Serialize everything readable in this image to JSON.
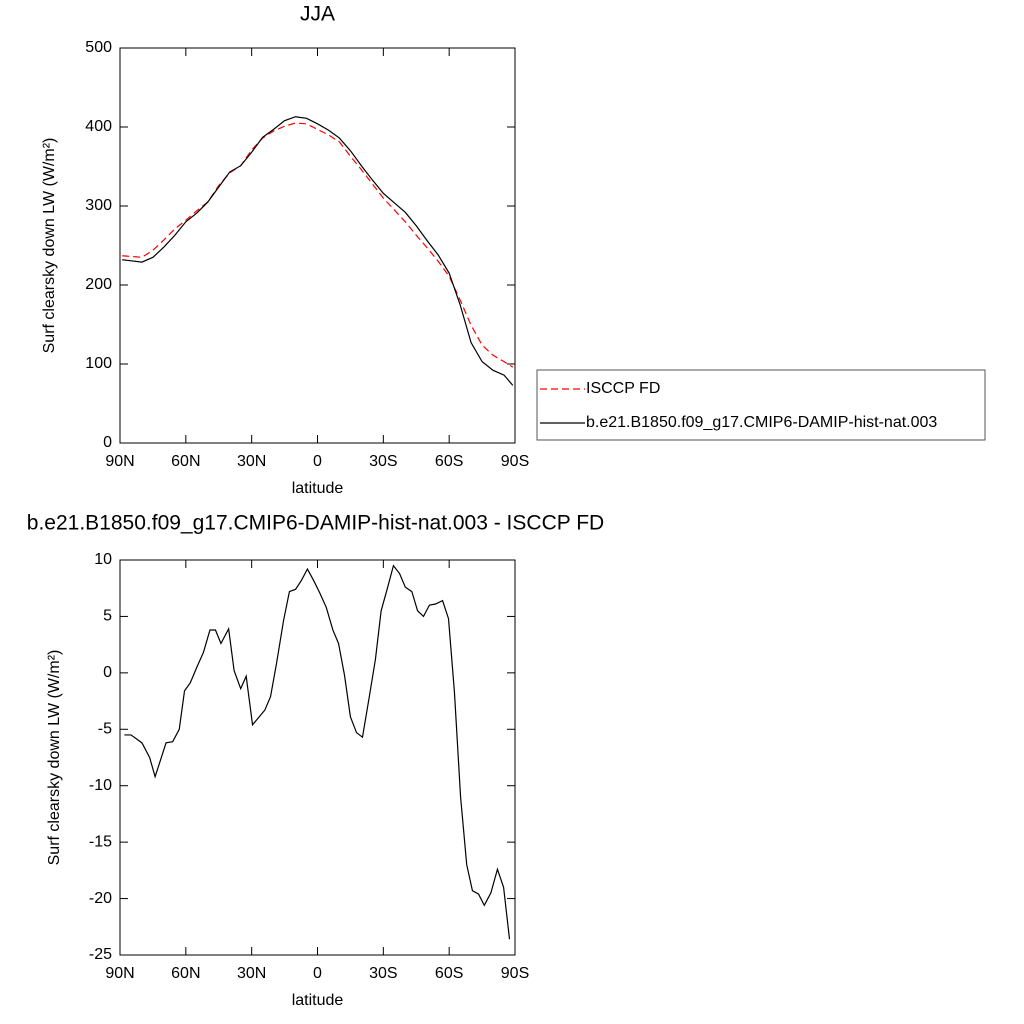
{
  "chart_data": [
    {
      "type": "line",
      "title": "JJA",
      "xlabel": "latitude",
      "ylabel": "Surf clearsky down LW (W/m²)",
      "xlim": [
        90,
        -90
      ],
      "xticks": [
        {
          "value": 90,
          "label": "90N"
        },
        {
          "value": 60,
          "label": "60N"
        },
        {
          "value": 30,
          "label": "30N"
        },
        0,
        {
          "value": -30,
          "label": "30S"
        },
        {
          "value": -60,
          "label": "60S"
        },
        {
          "value": -90,
          "label": "90S"
        }
      ],
      "ylim": [
        0,
        500
      ],
      "yticks": [
        0,
        100,
        200,
        300,
        400,
        500
      ],
      "legend": "outside-right",
      "x": [
        89,
        80,
        75,
        70,
        65,
        60,
        55,
        50,
        45,
        40,
        35,
        30,
        25,
        20,
        15,
        10,
        5,
        0,
        -5,
        -10,
        -15,
        -20,
        -25,
        -30,
        -35,
        -40,
        -45,
        -50,
        -55,
        -60,
        -65,
        -70,
        -75,
        -80,
        -85,
        -89
      ],
      "series": [
        {
          "name": "ISCCP FD",
          "color": "#ff0000",
          "dash": true,
          "values": [
            237,
            235,
            244,
            257,
            271,
            282,
            294,
            305,
            326,
            342,
            351,
            371,
            386,
            395,
            401,
            405,
            404,
            397,
            390,
            381,
            363,
            346,
            328,
            310,
            295,
            280,
            263,
            247,
            230,
            211,
            181,
            149,
            124,
            111,
            103,
            96
          ]
        },
        {
          "name": "b.e21.B1850.f09_g17.CMIP6-DAMIP-hist-nat.003",
          "color": "#000000",
          "dash": false,
          "values": [
            232,
            229,
            235,
            248,
            263,
            280,
            291,
            305,
            324,
            343,
            351,
            368,
            387,
            397,
            408,
            413,
            411,
            404,
            396,
            386,
            370,
            351,
            333,
            316,
            304,
            292,
            275,
            256,
            238,
            215,
            175,
            127,
            103,
            92,
            86,
            73
          ]
        }
      ]
    },
    {
      "type": "line",
      "title": "b.e21.B1850.f09_g17.CMIP6-DAMIP-hist-nat.003 - ISCCP FD",
      "xlabel": "latitude",
      "ylabel": "Surf clearsky down LW (W/m²)",
      "xlim": [
        90,
        -90
      ],
      "xticks": [
        {
          "value": 90,
          "label": "90N"
        },
        {
          "value": 60,
          "label": "60N"
        },
        {
          "value": 30,
          "label": "30N"
        },
        0,
        {
          "value": -30,
          "label": "30S"
        },
        {
          "value": -60,
          "label": "60S"
        },
        {
          "value": -90,
          "label": "90S"
        }
      ],
      "ylim": [
        -25,
        10
      ],
      "yticks": [
        -25,
        -20,
        -15,
        -10,
        -5,
        0,
        5,
        10
      ],
      "x": [
        88,
        85,
        80,
        76.5,
        74,
        69,
        66,
        63,
        60.6,
        58,
        55,
        52,
        49,
        46.5,
        44,
        40.5,
        38,
        35,
        32.5,
        29.6,
        27,
        24,
        21.4,
        18.7,
        15.5,
        12.8,
        10,
        7.3,
        4.6,
        1.8,
        -1,
        -4,
        -7,
        -9.6,
        -12.3,
        -15,
        -17.8,
        -20.5,
        -23.7,
        -26.4,
        -29,
        -32,
        -34.6,
        -37.4,
        -40,
        -43,
        -45.6,
        -48.3,
        -51,
        -53.8,
        -57,
        -59.7,
        -62.4,
        -65.2,
        -68,
        -70.6,
        -73.4,
        -76,
        -79,
        -82,
        -84.8,
        -87.5
      ],
      "series": [
        {
          "color": "#000000",
          "dash": false,
          "values": [
            -5.5,
            -5.5,
            -6.2,
            -7.5,
            -9.2,
            -6.2,
            -6.1,
            -5,
            -1.6,
            -0.9,
            0.5,
            1.8,
            3.8,
            3.8,
            2.6,
            3.9,
            0.2,
            -1.4,
            -0.3,
            -4.6,
            -4,
            -3.3,
            -2.1,
            0.8,
            4.6,
            7.2,
            7.4,
            8.2,
            9.2,
            8.2,
            7.1,
            5.8,
            3.8,
            2.6,
            -0.2,
            -3.9,
            -5.3,
            -5.7,
            -2,
            1.2,
            5.5,
            7.6,
            9.5,
            8.8,
            7.6,
            7.2,
            5.5,
            5,
            6,
            6.1,
            6.4,
            4.8,
            -1.7,
            -11,
            -17,
            -19.3,
            -19.6,
            -20.6,
            -19.5,
            -17.4,
            -19,
            -23.6
          ]
        }
      ]
    }
  ]
}
